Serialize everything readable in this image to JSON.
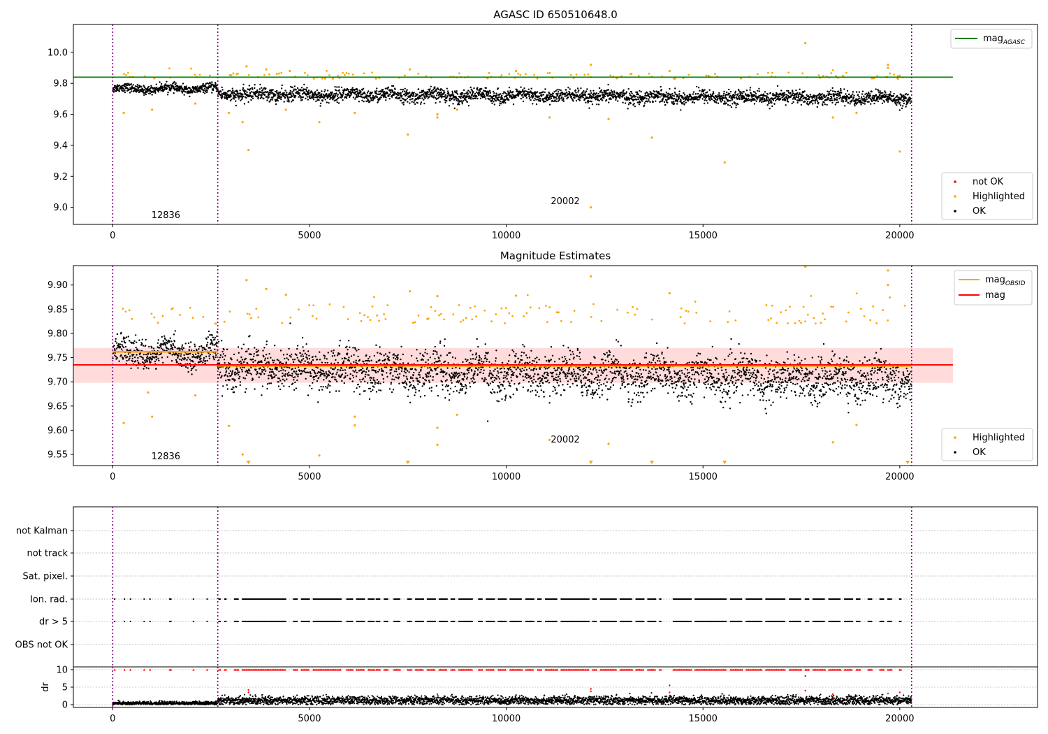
{
  "chart_data": [
    {
      "type": "scatter",
      "title": "AGASC ID 650510648.0",
      "xlim": [
        -1000,
        23500
      ],
      "ylim": [
        8.89,
        10.18
      ],
      "xticks": [
        0,
        5000,
        10000,
        15000,
        20000
      ],
      "xtick_labels": [
        "0",
        "5000",
        "10000",
        "15000",
        "20000"
      ],
      "yticks": [
        9.0,
        9.2,
        9.4,
        9.6,
        9.8,
        10.0
      ],
      "ytick_labels": [
        "9.0",
        "9.2",
        "9.4",
        "9.6",
        "9.8",
        "10.0"
      ],
      "vlines": [
        0,
        2670,
        20300
      ],
      "lines": [
        {
          "name": "mag_AGASC",
          "label_main": "mag",
          "label_sub": "AGASC",
          "color": "#008000",
          "y": 9.84,
          "x": [
            -1000,
            21350
          ]
        }
      ],
      "annotations": [
        {
          "text": "12836",
          "x": 1350,
          "y": 8.93
        },
        {
          "text": "20002",
          "x": 11500,
          "y": 9.02
        }
      ],
      "series_ok": {
        "name": "OK",
        "color": "#000000",
        "segments": [
          {
            "x": [
              0,
              2670
            ],
            "center": 9.765,
            "spread": 0.025
          },
          {
            "x": [
              2670,
              20300
            ],
            "center": 9.73,
            "spread": 0.04,
            "slope": -0.03
          }
        ]
      },
      "series_highlighted": {
        "name": "Highlighted",
        "color": "#ffa500",
        "points": [
          [
            280,
            9.61
          ],
          [
            1000,
            9.63
          ],
          [
            2100,
            9.67
          ],
          [
            2950,
            9.61
          ],
          [
            3300,
            9.55
          ],
          [
            3450,
            9.37
          ],
          [
            4400,
            9.63
          ],
          [
            5250,
            9.55
          ],
          [
            6150,
            9.61
          ],
          [
            7500,
            9.47
          ],
          [
            8250,
            9.58
          ],
          [
            8250,
            9.6
          ],
          [
            8750,
            9.63
          ],
          [
            11100,
            9.58
          ],
          [
            12150,
            9.0
          ],
          [
            12150,
            9.92
          ],
          [
            12600,
            9.57
          ],
          [
            13700,
            9.45
          ],
          [
            14150,
            9.88
          ],
          [
            15550,
            9.29
          ],
          [
            17600,
            10.06
          ],
          [
            18300,
            9.58
          ],
          [
            18900,
            9.61
          ],
          [
            19700,
            9.92
          ],
          [
            19700,
            9.9
          ],
          [
            20000,
            9.36
          ],
          [
            3400,
            9.91
          ],
          [
            3900,
            9.89
          ],
          [
            4500,
            9.88
          ],
          [
            7550,
            9.89
          ],
          [
            10250,
            9.88
          ],
          [
            19950,
            9.83
          ]
        ],
        "upper_band": [
          9.83,
          9.87
        ]
      },
      "series_notok": {
        "name": "not OK",
        "color": "#ff0000"
      },
      "legend_top": [
        "mag_AGASC"
      ],
      "legend_bottom": [
        "not OK",
        "Highlighted",
        "OK"
      ]
    },
    {
      "type": "scatter",
      "title": "Magnitude Estimates",
      "xlim": [
        -1000,
        23500
      ],
      "ylim": [
        9.527,
        9.94
      ],
      "xticks": [
        0,
        5000,
        10000,
        15000,
        20000
      ],
      "xtick_labels": [
        "0",
        "5000",
        "10000",
        "15000",
        "20000"
      ],
      "yticks": [
        9.55,
        9.6,
        9.65,
        9.7,
        9.75,
        9.8,
        9.85,
        9.9
      ],
      "ytick_labels": [
        "9.55",
        "9.60",
        "9.65",
        "9.70",
        "9.75",
        "9.80",
        "9.85",
        "9.90"
      ],
      "vlines": [
        0,
        2670,
        20300
      ],
      "band": {
        "color": "#ffb0b0",
        "y": [
          9.698,
          9.77
        ],
        "x": [
          -1000,
          21350
        ]
      },
      "lines": [
        {
          "name": "mag_OBSID",
          "label_main": "mag",
          "label_sub": "OBSID",
          "color": "#ffa500",
          "steps": [
            {
              "x": [
                0,
                2670
              ],
              "y": 9.762
            },
            {
              "x": [
                2670,
                20300
              ],
              "y": 9.733
            }
          ]
        },
        {
          "name": "mag",
          "label_main": "mag",
          "label_sub": "",
          "color": "#ff0000",
          "y": 9.735,
          "x": [
            -1000,
            21350
          ]
        }
      ],
      "annotations": [
        {
          "text": "12836",
          "x": 1350,
          "y": 9.54
        },
        {
          "text": "20002",
          "x": 11500,
          "y": 9.575
        }
      ],
      "series_ok": {
        "name": "OK",
        "color": "#000000",
        "segments": [
          {
            "x": [
              0,
              2670
            ],
            "center": 9.76,
            "spread": 0.025
          },
          {
            "x": [
              2670,
              20300
            ],
            "center": 9.73,
            "spread": 0.04,
            "slope": -0.03
          }
        ]
      },
      "series_highlighted": {
        "name": "Highlighted",
        "color": "#ffa500",
        "points": [
          [
            280,
            9.615
          ],
          [
            1000,
            9.628
          ],
          [
            2100,
            9.672
          ],
          [
            2950,
            9.609
          ],
          [
            3300,
            9.55
          ],
          [
            5250,
            9.548
          ],
          [
            6150,
            9.61
          ],
          [
            6150,
            9.628
          ],
          [
            8250,
            9.57
          ],
          [
            8250,
            9.605
          ],
          [
            8750,
            9.632
          ],
          [
            11100,
            9.58
          ],
          [
            12600,
            9.572
          ],
          [
            12150,
            9.918
          ],
          [
            18300,
            9.575
          ],
          [
            18900,
            9.611
          ],
          [
            19700,
            9.93
          ],
          [
            19700,
            9.9
          ],
          [
            3400,
            9.91
          ],
          [
            3900,
            9.892
          ],
          [
            4400,
            9.88
          ],
          [
            7550,
            9.887
          ],
          [
            8250,
            9.877
          ],
          [
            10250,
            9.878
          ],
          [
            14150,
            9.883
          ],
          [
            17600,
            9.938
          ],
          [
            900,
            9.678
          ]
        ],
        "upper_band": [
          9.82,
          9.86
        ],
        "clipped": [
          3450,
          7500,
          12150,
          13700,
          15550,
          20200
        ]
      },
      "legend_top": [
        "mag_OBSID",
        "mag"
      ],
      "legend_bottom": [
        "Highlighted",
        "OK"
      ]
    },
    {
      "type": "scatter",
      "title": "",
      "xlim": [
        -1000,
        23500
      ],
      "categories": [
        "not Kalman",
        "not track",
        "Sat. pixel.",
        "Ion. rad.",
        "dr > 5",
        "OBS not OK"
      ],
      "vlines": [
        0,
        2670,
        20300
      ],
      "flag_rows": [
        {
          "category": "Ion. rad.",
          "ranges": [
            [
              50,
              60
            ],
            [
              300,
              310
            ],
            [
              450,
              460
            ],
            [
              800,
              810
            ],
            [
              950,
              960
            ],
            [
              1450,
              1500
            ],
            [
              2050,
              2060
            ],
            [
              2400,
              2410
            ],
            [
              2700,
              2750
            ],
            [
              2850,
              2900
            ],
            [
              3100,
              3200
            ],
            [
              3300,
              4400
            ],
            [
              4600,
              4700
            ],
            [
              4800,
              5000
            ],
            [
              5100,
              5800
            ],
            [
              5950,
              6100
            ],
            [
              6200,
              6400
            ],
            [
              6500,
              6650
            ],
            [
              6700,
              6800
            ],
            [
              6900,
              7000
            ],
            [
              7150,
              7300
            ],
            [
              7500,
              7600
            ],
            [
              7700,
              7900
            ],
            [
              8000,
              8200
            ],
            [
              8300,
              8500
            ],
            [
              8600,
              8700
            ],
            [
              8800,
              9150
            ],
            [
              9300,
              9400
            ],
            [
              9500,
              9700
            ],
            [
              9800,
              10000
            ],
            [
              10100,
              10400
            ],
            [
              10500,
              10700
            ],
            [
              10800,
              10900
            ],
            [
              11000,
              11300
            ],
            [
              11400,
              12100
            ],
            [
              12200,
              12300
            ],
            [
              12400,
              12800
            ],
            [
              12900,
              13200
            ],
            [
              13300,
              13500
            ],
            [
              13600,
              13800
            ],
            [
              13900,
              13950
            ],
            [
              14250,
              14700
            ],
            [
              14800,
              15600
            ],
            [
              15700,
              16000
            ],
            [
              16100,
              16500
            ],
            [
              16600,
              17100
            ],
            [
              17200,
              17500
            ],
            [
              17600,
              17700
            ],
            [
              17800,
              18100
            ],
            [
              18200,
              18500
            ],
            [
              18600,
              18800
            ],
            [
              18900,
              19000
            ],
            [
              19200,
              19300
            ],
            [
              19500,
              19600
            ],
            [
              19700,
              19800
            ],
            [
              20000,
              20050
            ]
          ]
        },
        {
          "category": "dr > 5",
          "ranges": [
            [
              50,
              60
            ],
            [
              300,
              310
            ],
            [
              450,
              460
            ],
            [
              800,
              810
            ],
            [
              950,
              960
            ],
            [
              1450,
              1500
            ],
            [
              2050,
              2060
            ],
            [
              2400,
              2410
            ],
            [
              2700,
              2750
            ],
            [
              2850,
              2900
            ],
            [
              3100,
              3200
            ],
            [
              3300,
              4400
            ],
            [
              4600,
              4700
            ],
            [
              4800,
              5000
            ],
            [
              5100,
              5800
            ],
            [
              5950,
              6100
            ],
            [
              6200,
              6400
            ],
            [
              6500,
              6650
            ],
            [
              6700,
              6800
            ],
            [
              6900,
              7000
            ],
            [
              7150,
              7300
            ],
            [
              7500,
              7600
            ],
            [
              7700,
              7900
            ],
            [
              8000,
              8200
            ],
            [
              8300,
              8500
            ],
            [
              8600,
              8700
            ],
            [
              8800,
              9150
            ],
            [
              9300,
              9400
            ],
            [
              9500,
              9700
            ],
            [
              9800,
              10000
            ],
            [
              10100,
              10400
            ],
            [
              10500,
              10700
            ],
            [
              10800,
              10900
            ],
            [
              11000,
              11300
            ],
            [
              11400,
              12100
            ],
            [
              12200,
              12300
            ],
            [
              12400,
              12800
            ],
            [
              12900,
              13200
            ],
            [
              13300,
              13500
            ],
            [
              13600,
              13800
            ],
            [
              13900,
              13950
            ],
            [
              14250,
              14700
            ],
            [
              14800,
              15600
            ],
            [
              15700,
              16000
            ],
            [
              16100,
              16500
            ],
            [
              16600,
              17100
            ],
            [
              17200,
              17500
            ],
            [
              17600,
              17700
            ],
            [
              17800,
              18100
            ],
            [
              18200,
              18500
            ],
            [
              18600,
              18800
            ],
            [
              18900,
              19000
            ],
            [
              19200,
              19300
            ],
            [
              19500,
              19600
            ],
            [
              19700,
              19800
            ],
            [
              20000,
              20050
            ]
          ]
        }
      ]
    },
    {
      "type": "scatter",
      "title": "",
      "ylabel": "dr",
      "xlim": [
        -1000,
        23500
      ],
      "ylim": [
        -0.8,
        10.8
      ],
      "xticks": [
        0,
        5000,
        10000,
        15000,
        20000
      ],
      "xtick_labels": [
        "0",
        "5000",
        "10000",
        "15000",
        "20000"
      ],
      "yticks": [
        0,
        5,
        10
      ],
      "ytick_labels": [
        "0",
        "5",
        "10"
      ],
      "vlines": [
        0,
        2670,
        20300
      ],
      "series_ok": {
        "name": "OK",
        "color": "#000000",
        "segments": [
          {
            "x": [
              0,
              2670
            ],
            "center": 0.4,
            "spread": 0.25
          },
          {
            "x": [
              2670,
              20300
            ],
            "center": 1.2,
            "spread": 0.6
          }
        ]
      },
      "series_capped": {
        "name": "not OK",
        "color": "#ff0000",
        "y": 10,
        "outliers": [
          [
            3450,
            4.2
          ],
          [
            3450,
            3.5
          ],
          [
            8250,
            3.0
          ],
          [
            12150,
            4.5
          ],
          [
            12150,
            3.8
          ],
          [
            14150,
            5.5
          ],
          [
            14150,
            3.5
          ],
          [
            17600,
            8.2
          ],
          [
            17600,
            4.0
          ],
          [
            18300,
            3.0
          ],
          [
            19700,
            3.2
          ],
          [
            20000,
            3.5
          ]
        ]
      }
    }
  ]
}
